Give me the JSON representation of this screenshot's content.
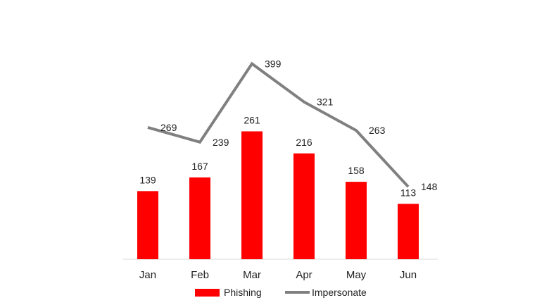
{
  "chart_data": {
    "type": "bar",
    "categories": [
      "Jan",
      "Feb",
      "Mar",
      "Apr",
      "May",
      "Jun"
    ],
    "series": [
      {
        "name": "Phishing",
        "kind": "bar",
        "values": [
          139,
          167,
          261,
          216,
          158,
          113
        ],
        "color": "#ff0000"
      },
      {
        "name": "Impersonate",
        "kind": "line",
        "values": [
          269,
          239,
          399,
          321,
          263,
          148
        ],
        "color": "#808080"
      }
    ],
    "legend": "bottom",
    "grid": false,
    "data_labels": true
  }
}
